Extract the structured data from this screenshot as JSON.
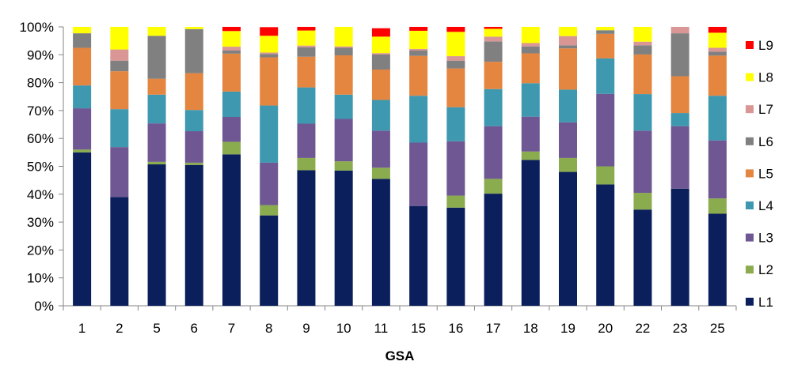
{
  "chart_data": {
    "type": "bar",
    "stacked": "percent",
    "xlabel": "GSA",
    "ylabel": "",
    "ylim": [
      0,
      100
    ],
    "yticks": [
      "0%",
      "10%",
      "20%",
      "30%",
      "40%",
      "50%",
      "60%",
      "70%",
      "80%",
      "90%",
      "100%"
    ],
    "grid": false,
    "legend_position": "right",
    "categories": [
      "1",
      "2",
      "5",
      "6",
      "7",
      "8",
      "9",
      "10",
      "11",
      "15",
      "16",
      "17",
      "18",
      "19",
      "20",
      "22",
      "23",
      "25"
    ],
    "series": [
      {
        "name": "L1",
        "color": "#0b1f5c",
        "values": [
          55.0,
          39.0,
          50.7,
          50.5,
          54.3,
          32.4,
          48.6,
          48.5,
          45.5,
          35.7,
          35.2,
          40.2,
          52.3,
          48.0,
          43.5,
          34.5,
          42.0,
          33.0
        ]
      },
      {
        "name": "L2",
        "color": "#8bab4f",
        "values": [
          1.0,
          0.0,
          0.9,
          0.8,
          4.5,
          3.7,
          4.4,
          3.3,
          4.0,
          0.0,
          4.3,
          5.3,
          3.0,
          5.0,
          6.5,
          6.0,
          0.0,
          5.5
        ]
      },
      {
        "name": "L3",
        "color": "#6e5793",
        "values": [
          14.8,
          17.9,
          13.8,
          11.3,
          8.9,
          15.2,
          12.3,
          15.2,
          13.3,
          22.8,
          19.5,
          18.9,
          12.5,
          12.8,
          26.0,
          22.3,
          22.4,
          20.8
        ]
      },
      {
        "name": "L4",
        "color": "#3e98b0",
        "values": [
          8.2,
          13.6,
          10.3,
          7.6,
          9.1,
          20.5,
          13.0,
          8.7,
          11.0,
          16.8,
          12.2,
          13.3,
          12.0,
          11.7,
          12.7,
          13.1,
          4.7,
          16.0
        ]
      },
      {
        "name": "L5",
        "color": "#e48540",
        "values": [
          13.5,
          13.6,
          5.7,
          13.2,
          13.6,
          17.3,
          11.0,
          14.1,
          10.9,
          14.3,
          13.9,
          9.8,
          10.7,
          14.8,
          8.8,
          14.2,
          13.2,
          14.4
        ]
      },
      {
        "name": "L6",
        "color": "#808080",
        "values": [
          5.2,
          3.8,
          15.4,
          15.8,
          1.1,
          1.2,
          3.4,
          2.7,
          5.4,
          1.9,
          2.8,
          7.3,
          2.5,
          1.1,
          1.3,
          3.3,
          15.4,
          1.4
        ]
      },
      {
        "name": "L7",
        "color": "#d99694",
        "values": [
          0.0,
          4.0,
          0.0,
          0.0,
          1.4,
          0.5,
          0.6,
          0.5,
          0.5,
          0.6,
          1.6,
          1.7,
          1.2,
          3.3,
          0.0,
          1.3,
          2.3,
          1.4
        ]
      },
      {
        "name": "L8",
        "color": "#ffff00",
        "values": [
          2.3,
          8.1,
          3.2,
          0.8,
          5.6,
          6.0,
          5.4,
          7.0,
          5.9,
          6.5,
          8.7,
          2.8,
          5.8,
          3.3,
          1.2,
          5.3,
          0.0,
          5.4
        ]
      },
      {
        "name": "L9",
        "color": "#ff0000",
        "values": [
          0.0,
          0.0,
          0.0,
          0.0,
          1.5,
          3.1,
          1.3,
          0.0,
          3.0,
          1.4,
          1.8,
          0.7,
          0.0,
          0.0,
          0.0,
          0.0,
          0.0,
          2.1
        ]
      }
    ]
  }
}
